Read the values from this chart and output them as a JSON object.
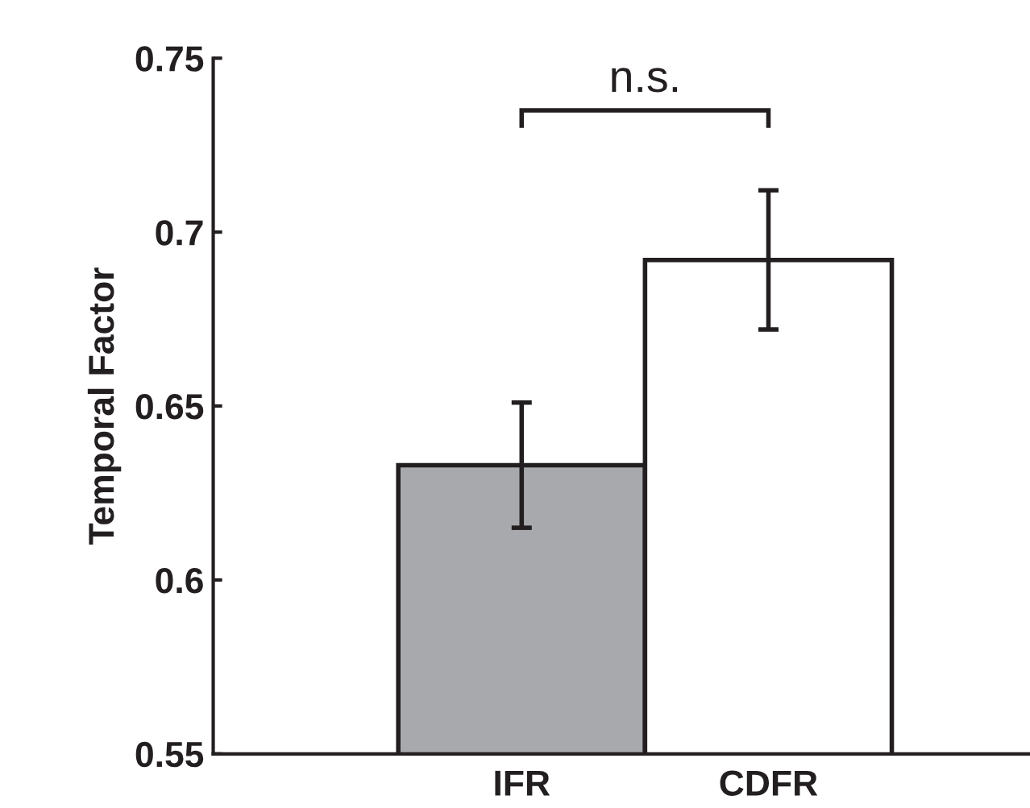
{
  "chart_data": {
    "type": "bar",
    "ylabel": "Temporal Factor",
    "categories": [
      "IFR",
      "CDFR"
    ],
    "values": [
      0.633,
      0.692
    ],
    "colors": [
      "#a7a9ac",
      "#ffffff"
    ],
    "errors": [
      0.018,
      0.02
    ],
    "ylim": [
      0.55,
      0.75
    ],
    "yticks": [
      0.55,
      0.6,
      0.65,
      0.7,
      0.75
    ],
    "grid": false,
    "annotations": [
      "n.s."
    ]
  }
}
